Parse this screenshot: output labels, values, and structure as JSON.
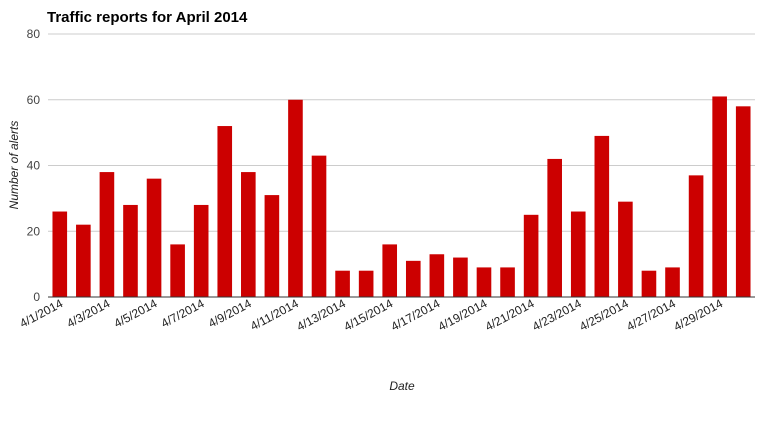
{
  "chart_data": {
    "type": "bar",
    "title": "Traffic reports for April 2014",
    "xlabel": "Date",
    "ylabel": "Number of alerts",
    "ylim": [
      0,
      80
    ],
    "yticks": [
      0,
      20,
      40,
      60,
      80
    ],
    "grid": true,
    "bar_color": "#cc0000",
    "categories": [
      "4/1/2014",
      "4/2/2014",
      "4/3/2014",
      "4/4/2014",
      "4/5/2014",
      "4/6/2014",
      "4/7/2014",
      "4/8/2014",
      "4/9/2014",
      "4/10/2014",
      "4/11/2014",
      "4/12/2014",
      "4/13/2014",
      "4/14/2014",
      "4/15/2014",
      "4/16/2014",
      "4/17/2014",
      "4/18/2014",
      "4/19/2014",
      "4/20/2014",
      "4/21/2014",
      "4/22/2014",
      "4/23/2014",
      "4/24/2014",
      "4/25/2014",
      "4/26/2014",
      "4/27/2014",
      "4/28/2014",
      "4/29/2014",
      "4/30/2014"
    ],
    "visible_tick_labels": [
      "4/1/2014",
      "4/3/2014",
      "4/5/2014",
      "4/7/2014",
      "4/9/2014",
      "4/11/2014",
      "4/13/2014",
      "4/15/2014",
      "4/17/2014",
      "4/19/2014",
      "4/21/2014",
      "4/23/2014",
      "4/25/2014",
      "4/27/2014",
      "4/29/2014"
    ],
    "values": [
      26,
      22,
      38,
      28,
      36,
      16,
      28,
      52,
      38,
      31,
      60,
      43,
      8,
      8,
      16,
      11,
      13,
      12,
      9,
      9,
      25,
      42,
      26,
      49,
      29,
      8,
      9,
      37,
      61,
      58
    ]
  }
}
